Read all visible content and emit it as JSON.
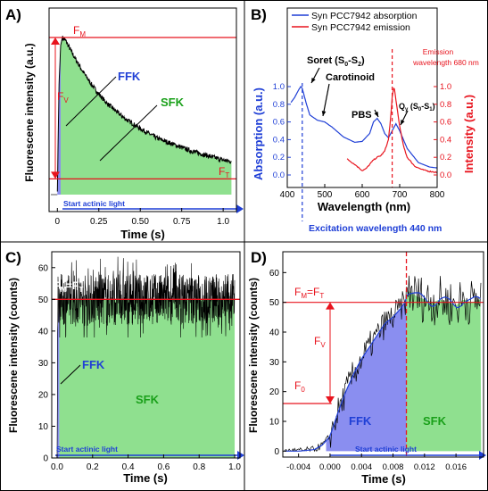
{
  "panels": {
    "A": {
      "label": "A)",
      "title": "",
      "ylabel": "Fluorescene intensity (a.u.)",
      "xlabel": "Time (s)",
      "xticks": [
        "0",
        "0.25",
        "0.50",
        "0.75",
        "1.0"
      ],
      "annotations": {
        "fm": "F",
        "fm_sub": "M",
        "fv": "F",
        "fv_sub": "V",
        "ft": "F",
        "ft_sub": "T",
        "ffk": "FFK",
        "sfk": "SFK",
        "actinic": "Start actinic light"
      }
    },
    "B": {
      "label": "B)",
      "ylabel_left": "Absorption (a.u.)",
      "ylabel_right": "Intensity (a.u.)",
      "xlabel": "Wavelength (nm)",
      "xticks": [
        "400",
        "500",
        "600",
        "700",
        "800"
      ],
      "yticks_left": [
        "0.0",
        "0.2",
        "0.4",
        "0.6",
        "0.8",
        "1.0"
      ],
      "yticks_right": [
        "0.0",
        "0.2",
        "0.4",
        "0.6",
        "0.8",
        "1.0"
      ],
      "legend": [
        "Syn PCC7942 absorption",
        "Syn PCC7942 emission"
      ],
      "annotations": {
        "soret": "Soret (S",
        "soret_sub": "0",
        "soret_mid": "-S",
        "soret_sub2": "2",
        "soret_end": ")",
        "carotinoid": "Carotinoid",
        "pbs": "PBS",
        "qy": "Q",
        "qy_sub": "y",
        "qy_mid": " (S",
        "qy_sub2": "0",
        "qy_mid2": "-S",
        "qy_sub3": "1",
        "qy_end": ")",
        "emission_1": "Emission",
        "emission_2": "wavelength 680 nm",
        "excitation": "Excitation wavelength 440 nm"
      }
    },
    "C": {
      "label": "C)",
      "ylabel": "Fluorescene intensity (counts)",
      "xlabel": "Time (s)",
      "xticks": [
        "0.0",
        "0.2",
        "0.4",
        "0.6",
        "0.8",
        "1.0"
      ],
      "yticks": [
        "0",
        "10",
        "20",
        "30",
        "40",
        "50",
        "60"
      ],
      "annotations": {
        "fmft_1": "F",
        "fmft_sub1": "M",
        "fmft_eq": "=F",
        "fmft_sub2": "T",
        "ffk": "FFK",
        "sfk": "SFK",
        "actinic": "Start actinic light"
      }
    },
    "D": {
      "label": "D)",
      "ylabel": "Fluorescene intensity (counts)",
      "xlabel": "Time (s)",
      "xticks": [
        "-0.004",
        "0.000",
        "0.004",
        "0.008",
        "0.012",
        "0.016"
      ],
      "yticks": [
        "0",
        "10",
        "20",
        "30",
        "40",
        "50",
        "60"
      ],
      "annotations": {
        "fmft_1": "F",
        "fmft_sub1": "M",
        "fmft_eq": "=F",
        "fmft_sub2": "T",
        "fv": "F",
        "fv_sub": "V",
        "f0": "F",
        "f0_sub": "0",
        "ffk": "FFK",
        "sfk": "SFK",
        "actinic": "Start actinic light"
      }
    }
  },
  "colors": {
    "fill_green": "#8fe08f",
    "fill_blue": "#8a8ef0",
    "red": "#e8141e",
    "blue": "#1f3fd6",
    "black": "#000000"
  },
  "chart_data": [
    {
      "type": "area",
      "panel": "A",
      "x_range": [
        -0.05,
        1.08
      ],
      "series": [
        {
          "x": [
            0.0,
            0.01,
            0.02,
            0.03,
            0.05,
            0.08,
            0.1,
            0.15,
            0.2,
            0.25,
            0.3,
            0.4,
            0.5,
            0.6,
            0.7,
            0.8,
            0.9,
            1.0,
            1.05
          ],
          "values": [
            0.02,
            0.7,
            0.95,
            1.0,
            0.98,
            0.92,
            0.88,
            0.79,
            0.71,
            0.64,
            0.58,
            0.49,
            0.42,
            0.36,
            0.32,
            0.28,
            0.25,
            0.22,
            0.21
          ]
        }
      ]
    },
    {
      "type": "line",
      "panel": "B",
      "xlim": [
        400,
        800
      ],
      "ylim": [
        0,
        1.1
      ],
      "series": [
        {
          "x": [
            410,
            420,
            430,
            436,
            440,
            450,
            460,
            480,
            500,
            520,
            550,
            580,
            600,
            620,
            630,
            640,
            650,
            660,
            670,
            680,
            690,
            700,
            720,
            750,
            780,
            800
          ],
          "values": [
            0.82,
            0.88,
            0.96,
            1.0,
            0.98,
            0.82,
            0.68,
            0.62,
            0.6,
            0.54,
            0.43,
            0.37,
            0.38,
            0.47,
            0.6,
            0.64,
            0.58,
            0.47,
            0.42,
            0.5,
            0.58,
            0.5,
            0.3,
            0.14,
            0.09,
            0.08
          ]
        },
        {
          "x": [
            560,
            580,
            600,
            610,
            620,
            630,
            640,
            650,
            660,
            670,
            675,
            680,
            685,
            690,
            700,
            710,
            720,
            740,
            760,
            780,
            800
          ],
          "values": [
            0.18,
            0.12,
            0.05,
            0.07,
            0.12,
            0.17,
            0.2,
            0.22,
            0.27,
            0.4,
            0.6,
            0.88,
            1.0,
            0.85,
            0.55,
            0.33,
            0.2,
            0.1,
            0.06,
            0.04,
            0.03
          ]
        }
      ]
    },
    {
      "type": "area",
      "panel": "C",
      "xlim": [
        -0.03,
        1.03
      ],
      "ylim": [
        0,
        65
      ],
      "series": [
        {
          "x": [
            0.0,
            0.01,
            0.02,
            0.1,
            0.2,
            0.3,
            0.4,
            0.5,
            0.6,
            0.7,
            0.8,
            0.9,
            1.0
          ],
          "values": [
            0,
            45,
            50,
            50,
            50,
            50,
            50,
            50,
            50,
            50,
            50,
            50,
            50
          ]
        }
      ]
    },
    {
      "type": "area",
      "panel": "D",
      "xlim": [
        -0.006,
        0.0195
      ],
      "ylim": [
        -2,
        67
      ],
      "series": [
        {
          "x": [
            -0.006,
            -0.004,
            -0.002,
            -0.001,
            0.0,
            0.001,
            0.002,
            0.003,
            0.004,
            0.005,
            0.006,
            0.007,
            0.008,
            0.009,
            0.0095,
            0.01,
            0.011,
            0.012,
            0.013,
            0.014,
            0.015,
            0.016,
            0.017,
            0.018,
            0.019
          ],
          "values": [
            0,
            0,
            0.5,
            2,
            5,
            13,
            20,
            26,
            31,
            35,
            39,
            43,
            45,
            48,
            50,
            54,
            52,
            51,
            50,
            51,
            50,
            49,
            51,
            50,
            51
          ]
        }
      ]
    }
  ]
}
